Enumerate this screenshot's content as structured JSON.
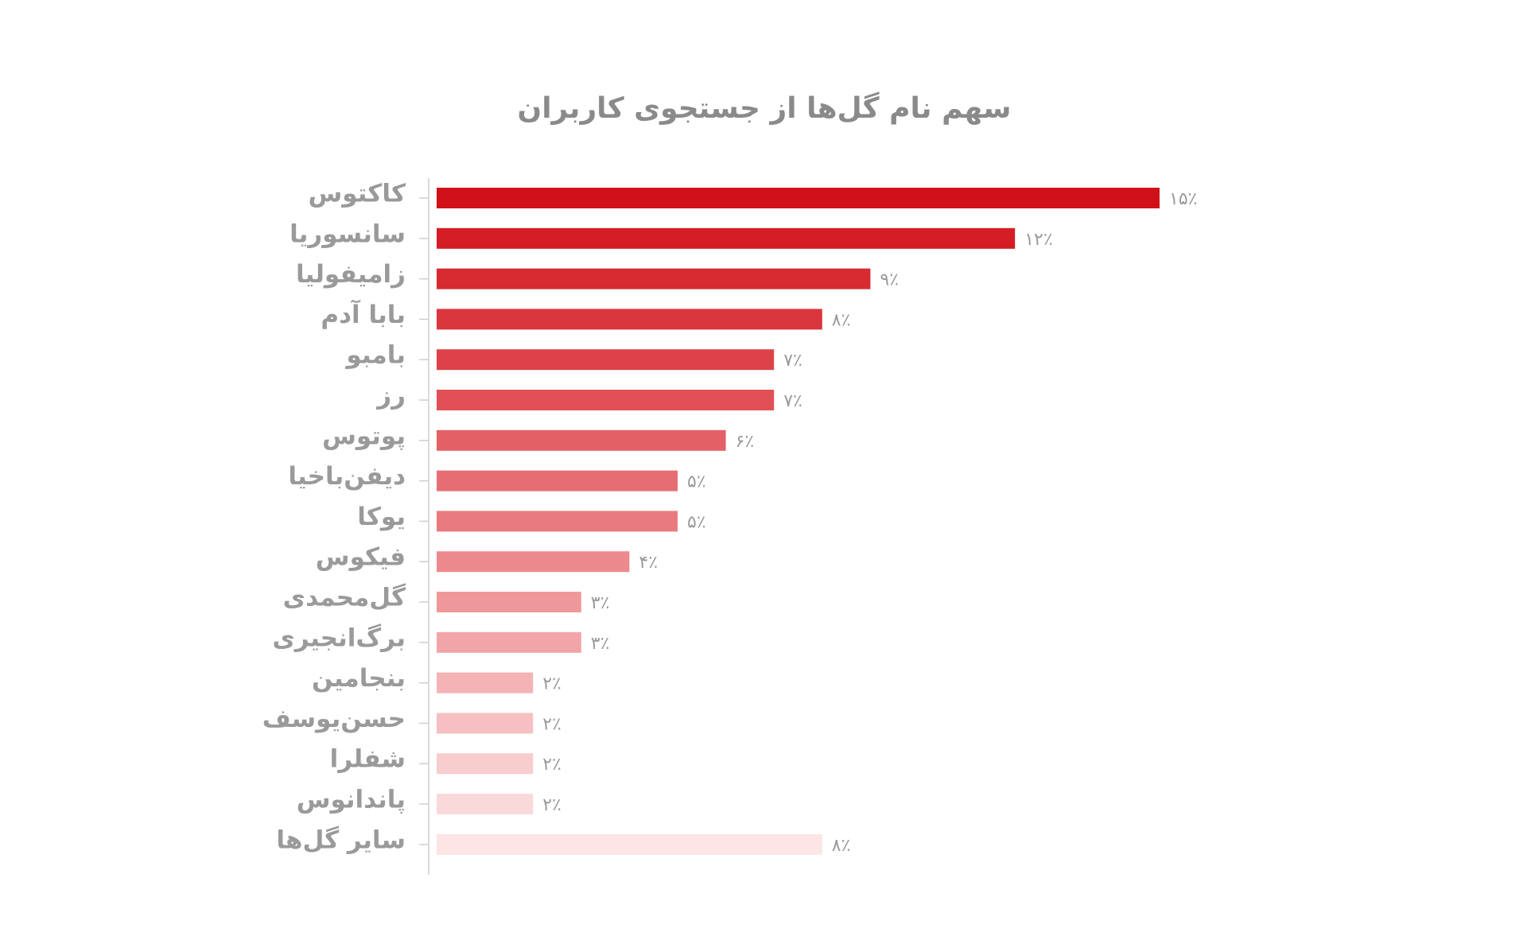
{
  "chart_data": {
    "type": "barh",
    "title": "سهم نام گل‌ها از جستجوی کاربران",
    "categories": [
      "کاکتوس",
      "سانسوریا",
      "زامیفولیا",
      "بابا آدم",
      "بامبو",
      "رز",
      "پوتوس",
      "دیفن‌باخیا",
      "یوکا",
      "فیکوس",
      "گل‌محمدی",
      "برگ‌انجیری",
      "بنجامین",
      "حسن‌یوسف",
      "شفلرا",
      "پاندانوس",
      "سایر گل‌ها"
    ],
    "values": [
      15,
      12,
      9,
      8,
      7,
      7,
      6,
      5,
      5,
      4,
      3,
      3,
      2,
      2,
      2,
      2,
      8
    ],
    "value_labels": [
      "۱۵٪",
      "۱۲٪",
      "۹٪",
      "۸٪",
      "۷٪",
      "۷٪",
      "۶٪",
      "۵٪",
      "۵٪",
      "۴٪",
      "۳٪",
      "۳٪",
      "۲٪",
      "۲٪",
      "۲٪",
      "۲٪",
      "۸٪"
    ],
    "colors": [
      "#d01119",
      "#d41d25",
      "#d72a31",
      "#da363d",
      "#dd4249",
      "#e05056",
      "#e36066",
      "#e66e73",
      "#e97b80",
      "#ec898d",
      "#ef989b",
      "#f1a5a8",
      "#f4b3b5",
      "#f6c0c2",
      "#f8cdce",
      "#fad9da",
      "#fde4e5"
    ]
  }
}
